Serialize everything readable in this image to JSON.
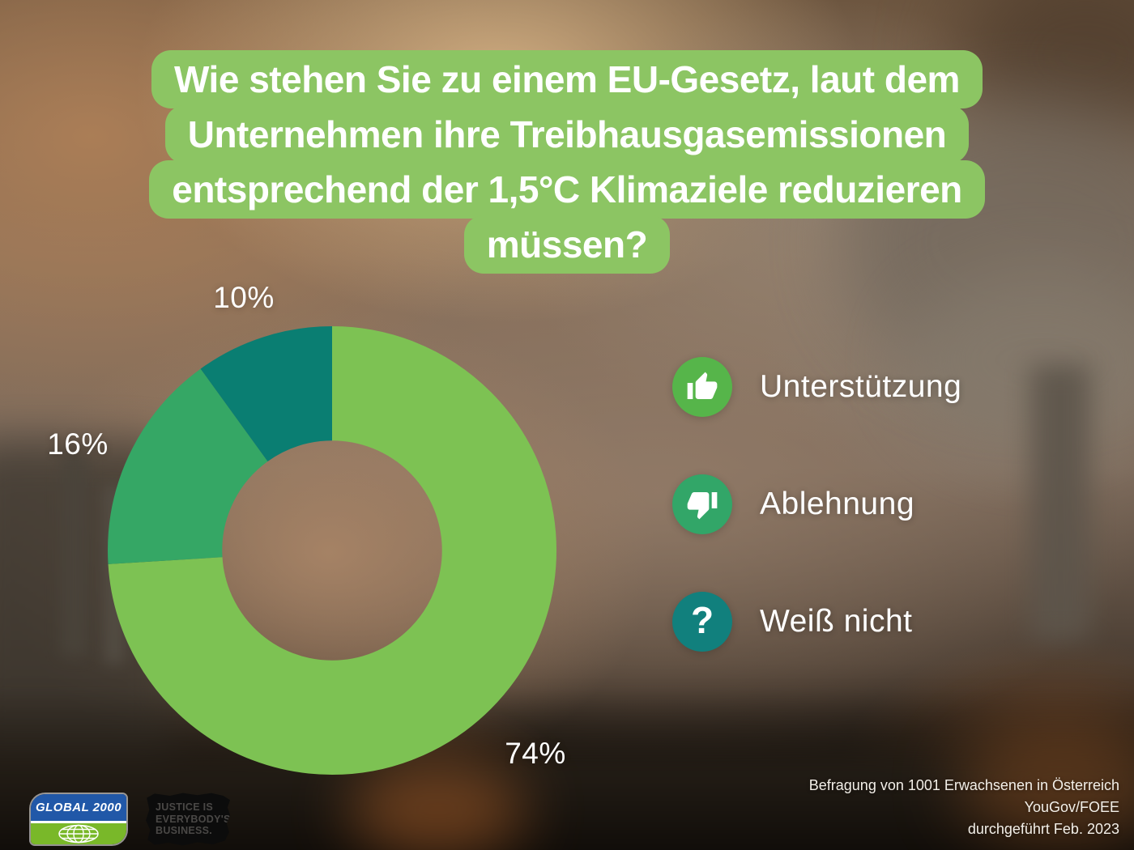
{
  "title": {
    "lines": [
      "Wie stehen Sie zu einem EU-Gesetz, laut dem",
      "Unternehmen ihre Treibhausgasemissionen",
      "entsprechend der 1,5°C Klimaziele reduzieren",
      "müssen?"
    ],
    "highlight_color": "#8cc563",
    "text_color": "#ffffff"
  },
  "chart_data": {
    "type": "pie",
    "subtype": "donut",
    "categories": [
      "Unterstützung",
      "Ablehnung",
      "Weiß nicht"
    ],
    "values": [
      74,
      16,
      10
    ],
    "unit": "%",
    "labels": [
      "74%",
      "16%",
      "10%"
    ],
    "colors": [
      "#7dc253",
      "#35a765",
      "#0a7e72"
    ],
    "start_angle_deg": 0,
    "direction": "clockwise",
    "inner_radius_ratio": 0.49,
    "legend_position": "right",
    "title": "Wie stehen Sie zu einem EU-Gesetz, laut dem Unternehmen ihre Treibhausgasemissionen entsprechend der 1,5°C Klimaziele reduzieren müssen?"
  },
  "legend": {
    "items": [
      {
        "label": "Unterstützung",
        "icon": "thumbs-up-icon",
        "color": "#56b54a"
      },
      {
        "label": "Ablehnung",
        "icon": "thumbs-down-icon",
        "color": "#32a668"
      },
      {
        "label": "Weiß nicht",
        "icon": "question-mark-icon",
        "color": "#11807d"
      }
    ]
  },
  "footer": {
    "source_lines": [
      "Befragung von 1001 Erwachsenen in Österreich",
      "YouGov/FOEE",
      "durchgeführt Feb. 2023"
    ],
    "logos": {
      "global2000": {
        "text": "GLOBAL 2000",
        "top_color": "#2158a8",
        "bottom_color": "#79b829"
      },
      "justice": {
        "lines": [
          "JUSTICE IS",
          "EVERYBODY'S",
          "BUSINESS."
        ]
      }
    }
  }
}
